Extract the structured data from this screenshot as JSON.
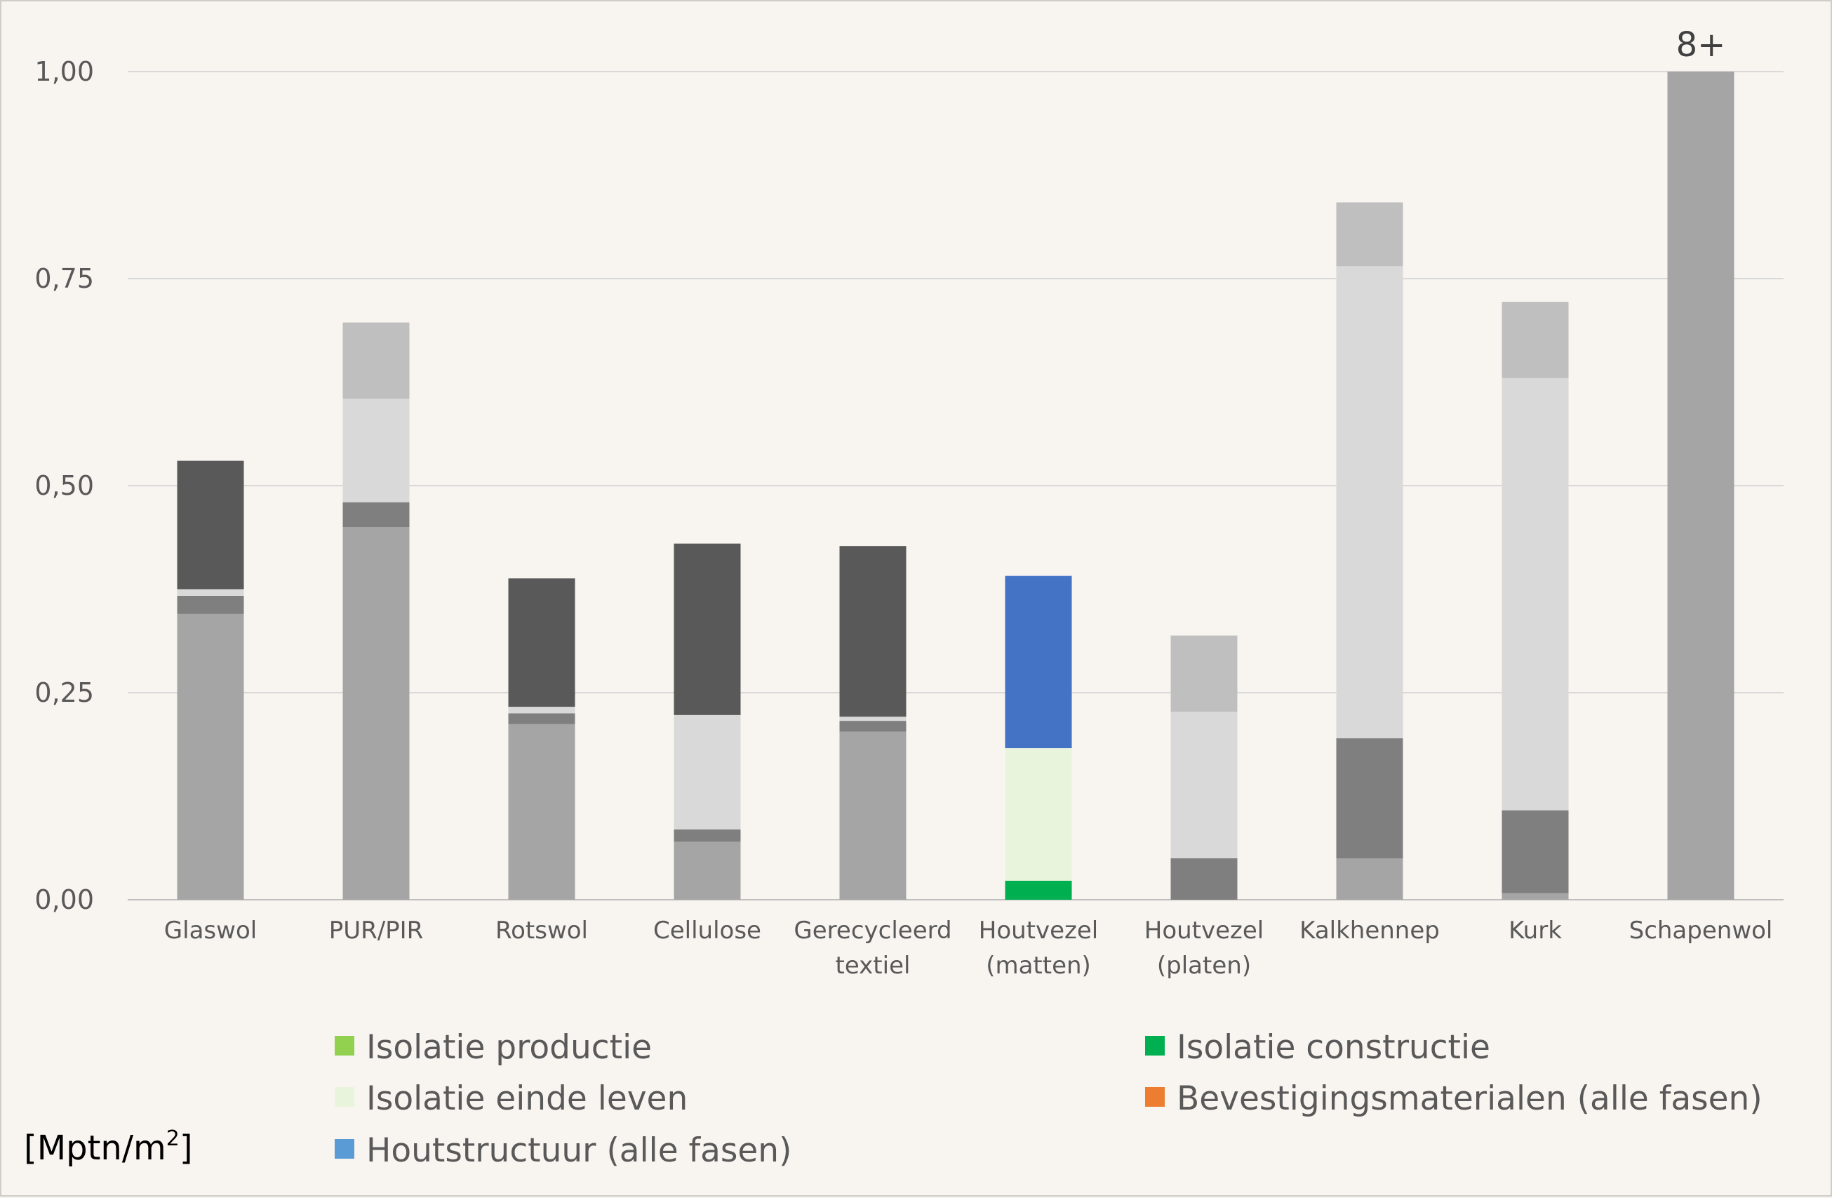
{
  "chart_data": {
    "type": "bar",
    "stacked": true,
    "ylim": [
      0,
      1
    ],
    "ytick_labels": [
      "0,00",
      "0,25",
      "0,50",
      "0,75",
      "1,00"
    ],
    "grid": true,
    "legend_position": "bottom",
    "unit_label": {
      "base": "[Mptn/m",
      "sup": "2",
      "close": "]"
    },
    "annotation": {
      "text": "8+",
      "category_index": 9
    },
    "categories": [
      [
        "Glaswol"
      ],
      [
        "PUR/PIR"
      ],
      [
        "Rotswol"
      ],
      [
        "Cellulose"
      ],
      [
        "Gerecycleerd",
        "textiel"
      ],
      [
        "Houtvezel",
        "(matten)"
      ],
      [
        "Houtvezel",
        "(platen)"
      ],
      [
        "Kalkhennep"
      ],
      [
        "Kurk"
      ],
      [
        "Schapenwol"
      ]
    ],
    "series": [
      {
        "name": "Isolatie productie",
        "color_highlight": "#92d050",
        "color_muted": "#a5a5a5",
        "values": [
          0.345,
          0.45,
          0.212,
          0.07,
          0.203,
          0.003,
          0.0,
          0.05,
          0.008,
          1.0
        ]
      },
      {
        "name": "Isolatie constructie",
        "color_highlight": "#00b050",
        "color_muted": "#7f7f7f",
        "values": [
          0.022,
          0.03,
          0.013,
          0.015,
          0.013,
          0.02,
          0.05,
          0.145,
          0.1,
          0.0
        ]
      },
      {
        "name": "Isolatie einde leven",
        "color_highlight": "#e8f5dc",
        "color_muted": "#d9d9d9",
        "values": [
          0.008,
          0.125,
          0.008,
          0.138,
          0.005,
          0.16,
          0.177,
          0.57,
          0.522,
          0.0
        ]
      },
      {
        "name": "Bevestigingsmaterialen (alle fasen)",
        "color_highlight": "#ed7d31",
        "color_muted": "#bfbfbf",
        "values": [
          0.0,
          0.092,
          0.0,
          0.0,
          0.0,
          0.0,
          0.092,
          0.077,
          0.092,
          0.0
        ]
      },
      {
        "name": "Houtstructuur (alle fasen)",
        "color_highlight": "#4472c4",
        "color_muted": "#595959",
        "values": [
          0.155,
          0.0,
          0.155,
          0.207,
          0.206,
          0.208,
          0.0,
          0.0,
          0.0,
          0.0
        ]
      }
    ],
    "highlighted_category_index": 5,
    "legend": [
      {
        "label": "Isolatie productie",
        "color": "#92d050"
      },
      {
        "label": "Isolatie constructie",
        "color": "#00b050"
      },
      {
        "label": "Isolatie einde leven",
        "color": "#e8f5dc"
      },
      {
        "label": "Bevestigingsmaterialen (alle fasen)",
        "color": "#ed7d31"
      },
      {
        "label": "Houtstructuur (alle fasen)",
        "color": "#5b9bd5"
      }
    ],
    "highlight_bar_colors": [
      "#00b050",
      "#00b050",
      "#e8f5dc",
      "#ed7d31",
      "#4472c4"
    ]
  }
}
